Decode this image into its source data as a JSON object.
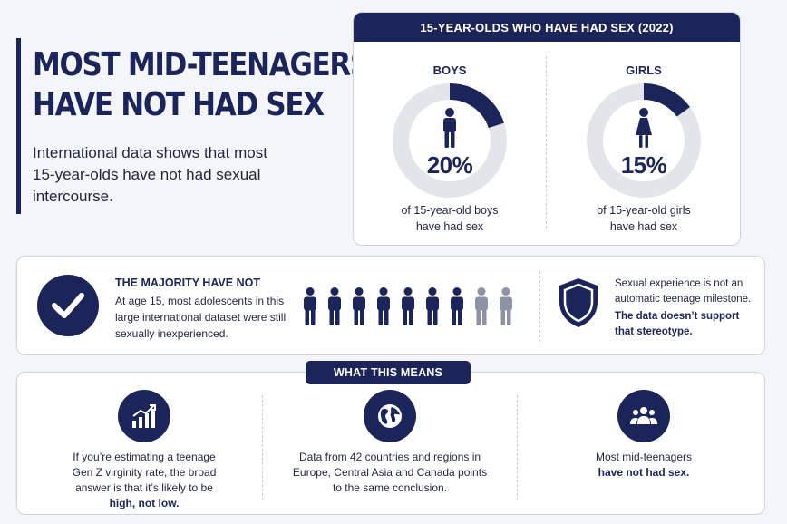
{
  "header": {
    "title_line1": "MOST MID-TEENAGERS",
    "title_line2": "HAVE NOT HAD SEX",
    "subtitle": "International data shows that most 15-year-olds have not had sexual intercourse."
  },
  "stats": {
    "heading": "15-YEAR-OLDS WHO HAVE HAD SEX (2022)",
    "boys": {
      "label": "BOYS",
      "value_text": "20%",
      "fraction": 0.2,
      "caption_line1": "of 15-year-old boys",
      "caption_line2": "have had sex"
    },
    "girls": {
      "label": "GIRLS",
      "value_text": "15%",
      "fraction": 0.15,
      "caption_line1": "of 15-year-old girls",
      "caption_line2": "have had sex"
    },
    "colors": {
      "filled": "#1b2559",
      "track": "#e3e5ea"
    }
  },
  "majority": {
    "heading": "THE MAJORITY HAVE NOT",
    "text": "At age 15, most adolescents in this large international dataset were still sexually inexperienced.",
    "people": {
      "total": 9,
      "highlighted": 7,
      "color_on": "#1b2559",
      "color_off": "#8d93a6"
    },
    "claim": "Sexual experience is not an automatic teenage milestone.",
    "claim_bold": "The data doesn’t support that stereotype."
  },
  "meaning": {
    "tab_label": "WHAT THIS MEANS",
    "col1": {
      "icon": "chart-growth-icon",
      "text": "If you’re estimating a teenage Gen Z virginity rate, the broad answer is that it’s likely to be",
      "bold": "high, not low."
    },
    "col2": {
      "icon": "globe-icon",
      "text": "Data from 42 countries and regions in Europe, Central Asia and Canada points to the same conclusion."
    },
    "col3": {
      "icon": "group-icon",
      "text": "Most mid-teenagers",
      "bold": "have not had sex."
    }
  }
}
